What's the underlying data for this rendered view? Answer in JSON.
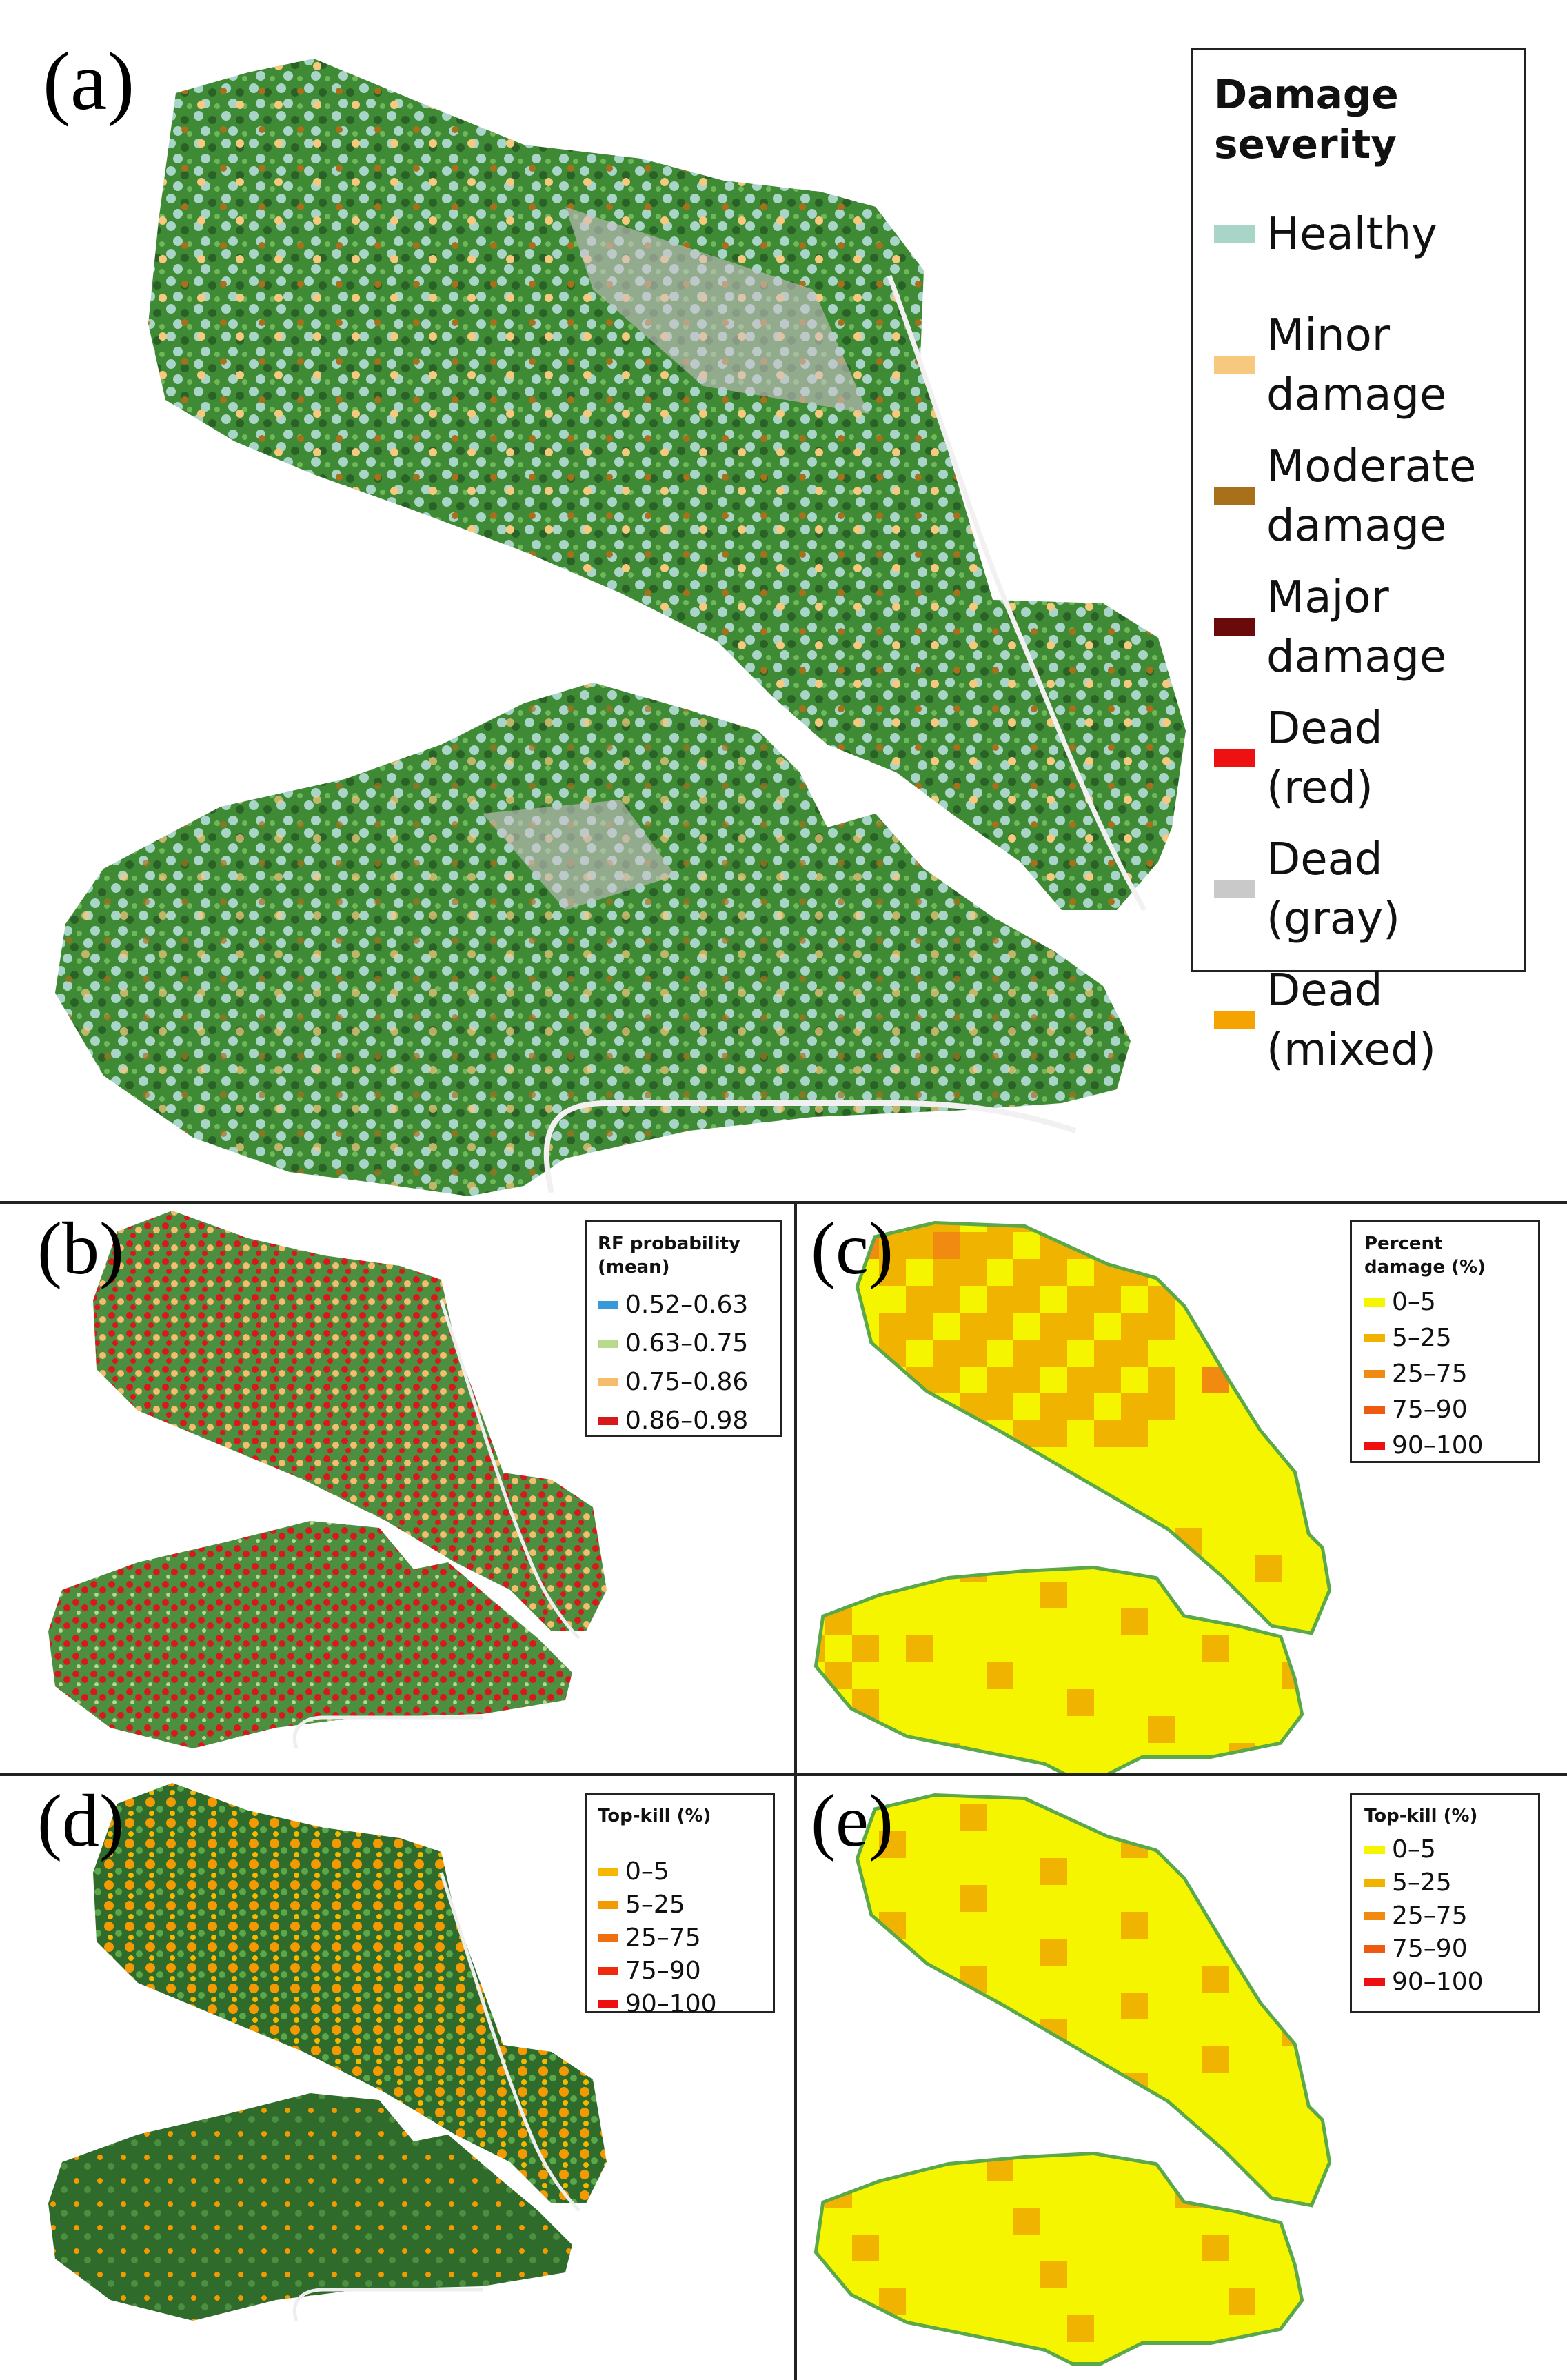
{
  "panels": {
    "a": {
      "label": "(a)",
      "legend": {
        "title": "Damage severity",
        "items": [
          {
            "label": "Healthy",
            "color": "#a8d5c8"
          },
          {
            "label": "Minor damage",
            "color": "#f7c97f"
          },
          {
            "label": "Moderate damage",
            "color": "#a8701b"
          },
          {
            "label": "Major damage",
            "color": "#6b0a0a"
          },
          {
            "label": "Dead (red)",
            "color": "#ee1111"
          },
          {
            "label": "Dead (gray)",
            "color": "#c9c9c9"
          },
          {
            "label": "Dead (mixed)",
            "color": "#f5a300"
          }
        ]
      }
    },
    "b": {
      "label": "(b)",
      "legend": {
        "title": "RF probability (mean)",
        "items": [
          {
            "label": "0.52–0.63",
            "color": "#3a9ad9"
          },
          {
            "label": "0.63–0.75",
            "color": "#b8d98c"
          },
          {
            "label": "0.75–0.86",
            "color": "#f3bd6c"
          },
          {
            "label": "0.86–0.98",
            "color": "#d7191c"
          }
        ]
      }
    },
    "c": {
      "label": "(c)",
      "legend": {
        "title": "Percent damage (%)",
        "items": [
          {
            "label": "0–5",
            "color": "#f5f500"
          },
          {
            "label": "5–25",
            "color": "#f0b400"
          },
          {
            "label": "25–75",
            "color": "#f08a10"
          },
          {
            "label": "75–90",
            "color": "#ee5a10"
          },
          {
            "label": "90–100",
            "color": "#ee1010"
          }
        ]
      }
    },
    "d": {
      "label": "(d)",
      "legend": {
        "title": "Top-kill (%)",
        "items": [
          {
            "label": "0–5",
            "color": "#f5b800"
          },
          {
            "label": "5–25",
            "color": "#f29a00"
          },
          {
            "label": "25–75",
            "color": "#f07010"
          },
          {
            "label": "75–90",
            "color": "#ee2a10"
          },
          {
            "label": "90–100",
            "color": "#ee1010"
          }
        ]
      }
    },
    "e": {
      "label": "(e)",
      "legend": {
        "title": "Top-kill (%)",
        "items": [
          {
            "label": "0–5",
            "color": "#f5f500"
          },
          {
            "label": "5–25",
            "color": "#f0b400"
          },
          {
            "label": "25–75",
            "color": "#f08a10"
          },
          {
            "label": "75–90",
            "color": "#ee5a10"
          },
          {
            "label": "90–100",
            "color": "#ee1010"
          }
        ]
      }
    }
  },
  "colors": {
    "forest_dark": "#2f6b2a",
    "forest_mid": "#3f8a35",
    "forest_light": "#5aa84a",
    "bare_ground": "#c9c2c8",
    "road": "#f2f0f0"
  }
}
